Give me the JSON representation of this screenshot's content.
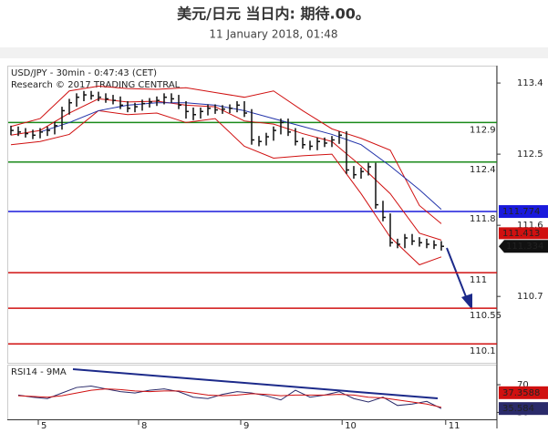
{
  "chart_data": {
    "type": "price-bars",
    "title": "美元/日元 当日内: 期待.00。",
    "subtitle": "11 January 2018, 01:48",
    "header": "USD/JPY - 30min - 0:47:43 (CET)",
    "credit": "Research © 2017 TRADING CENTRAL",
    "ylim": [
      109.86,
      113.62
    ],
    "yticks": [
      113.4,
      112.5,
      111.6,
      110.7
    ],
    "xlim": [
      0,
      60
    ],
    "xticks": [
      {
        "value": 3.75,
        "label": "5"
      },
      {
        "value": 17.5,
        "label": "8"
      },
      {
        "value": 31.5,
        "label": "9"
      },
      {
        "value": 45.4,
        "label": "10"
      },
      {
        "value": 59.6,
        "label": "11"
      }
    ],
    "high": [
      112.86,
      112.85,
      112.83,
      112.81,
      112.83,
      112.85,
      112.91,
      113.1,
      113.2,
      113.27,
      113.3,
      113.3,
      113.29,
      113.27,
      113.25,
      113.23,
      113.17,
      113.15,
      113.19,
      113.21,
      113.23,
      113.27,
      113.27,
      113.25,
      113.17,
      113.09,
      113.09,
      113.13,
      113.13,
      113.12,
      113.13,
      113.17,
      113.17,
      113.07,
      112.73,
      112.77,
      112.85,
      112.95,
      112.95,
      112.83,
      112.71,
      112.67,
      112.71,
      112.71,
      112.73,
      112.79,
      112.79,
      112.35,
      112.33,
      112.39,
      112.39,
      111.91,
      111.75,
      111.43,
      111.49,
      111.49,
      111.45,
      111.43,
      111.41,
      111.4
    ],
    "low": [
      112.74,
      112.73,
      112.71,
      112.69,
      112.7,
      112.73,
      112.75,
      112.81,
      113.0,
      113.1,
      113.17,
      113.19,
      113.17,
      113.15,
      113.13,
      113.07,
      113.03,
      113.03,
      113.05,
      113.09,
      113.11,
      113.13,
      113.15,
      113.07,
      112.95,
      112.93,
      112.95,
      112.99,
      113.01,
      113.01,
      113.02,
      113.03,
      112.97,
      112.62,
      112.6,
      112.61,
      112.67,
      112.75,
      112.73,
      112.61,
      112.57,
      112.55,
      112.55,
      112.59,
      112.59,
      112.63,
      112.25,
      112.19,
      112.19,
      112.23,
      111.81,
      111.65,
      111.33,
      111.31,
      111.31,
      111.35,
      111.33,
      111.31,
      111.3,
      111.28
    ],
    "close": [
      112.8,
      112.78,
      112.76,
      112.74,
      112.78,
      112.8,
      112.86,
      113.05,
      113.15,
      113.22,
      113.25,
      113.24,
      113.22,
      113.2,
      113.18,
      113.12,
      113.08,
      113.1,
      113.14,
      113.16,
      113.18,
      113.22,
      113.2,
      113.12,
      113.04,
      113.0,
      113.04,
      113.08,
      113.06,
      113.07,
      113.08,
      113.12,
      113.02,
      112.68,
      112.66,
      112.72,
      112.8,
      112.9,
      112.78,
      112.66,
      112.62,
      112.6,
      112.66,
      112.64,
      112.68,
      112.74,
      112.3,
      112.24,
      112.28,
      112.34,
      111.86,
      111.7,
      111.38,
      111.36,
      111.44,
      111.4,
      111.38,
      111.36,
      111.35,
      111.334
    ],
    "bar_color": "#111111",
    "close_box_color": "#111111",
    "overlays": [
      {
        "color": "#d01010",
        "x": [
          0,
          4,
          8,
          12,
          16,
          20,
          24,
          28,
          32,
          36,
          40,
          44,
          48,
          52,
          56,
          59
        ],
        "values": [
          112.85,
          112.95,
          113.3,
          113.36,
          113.33,
          113.32,
          113.34,
          113.28,
          113.22,
          113.3,
          113.05,
          112.82,
          112.7,
          112.55,
          111.85,
          111.62
        ]
      },
      {
        "color": "#d01010",
        "x": [
          0,
          4,
          8,
          12,
          16,
          20,
          24,
          28,
          32,
          36,
          40,
          44,
          48,
          52,
          56,
          59
        ],
        "values": [
          112.62,
          112.66,
          112.75,
          113.05,
          113.0,
          113.02,
          112.9,
          112.95,
          112.6,
          112.45,
          112.48,
          112.5,
          112.0,
          111.45,
          111.1,
          111.2
        ]
      },
      {
        "color": "#d01010",
        "box": true,
        "x": [
          0,
          4,
          8,
          12,
          16,
          20,
          24,
          28,
          32,
          36,
          40,
          44,
          48,
          52,
          56,
          59
        ],
        "values": [
          112.74,
          112.8,
          113.02,
          113.2,
          113.16,
          113.17,
          113.12,
          113.1,
          112.92,
          112.88,
          112.76,
          112.66,
          112.35,
          112.0,
          111.5,
          111.413
        ]
      },
      {
        "color": "#2233aa",
        "x": [
          0,
          4,
          8,
          12,
          16,
          20,
          24,
          28,
          32,
          36,
          40,
          44,
          48,
          52,
          56,
          59
        ],
        "values": [
          null,
          112.78,
          112.9,
          113.05,
          113.12,
          113.15,
          113.15,
          113.12,
          113.05,
          112.95,
          112.85,
          112.75,
          112.62,
          112.35,
          112.05,
          111.8
        ]
      }
    ],
    "levels": [
      {
        "value": 112.9,
        "color": "#1a8a1a"
      },
      {
        "value": 112.4,
        "color": "#1a8a1a"
      },
      {
        "value": 111.774,
        "value_label": "111.8",
        "color": "#1a1adc",
        "box": true
      },
      {
        "value": 111,
        "color": "#d01010"
      },
      {
        "value": 110.55,
        "color": "#d01010"
      },
      {
        "value": 110.1,
        "color": "#d01010"
      }
    ],
    "rsi": {
      "title": "RSI14 - 9MA",
      "ylim": [
        20,
        99
      ],
      "yticks": [
        70,
        30
      ],
      "x": [
        1,
        3,
        5,
        7,
        9,
        11,
        13,
        15,
        17,
        19,
        21,
        23,
        25,
        27,
        29,
        31,
        33,
        35,
        37,
        39,
        41,
        43,
        45,
        47,
        49,
        51,
        53,
        55,
        57,
        59
      ],
      "series": [
        {
          "color": "#2a2a6a",
          "values": [
            55,
            52,
            50,
            58,
            66,
            68,
            64,
            60,
            58,
            62,
            64,
            60,
            52,
            50,
            56,
            60,
            58,
            54,
            48,
            62,
            52,
            55,
            60,
            50,
            45,
            52,
            40,
            42,
            46,
            35.584
          ]
        },
        {
          "color": "#d01010",
          "values": [
            54,
            53,
            52,
            54,
            58,
            62,
            64,
            63,
            61,
            60,
            61,
            61,
            58,
            55,
            54,
            55,
            57,
            56,
            54,
            55,
            55,
            55,
            56,
            55,
            52,
            51,
            48,
            45,
            42,
            37.3588
          ]
        }
      ]
    }
  }
}
